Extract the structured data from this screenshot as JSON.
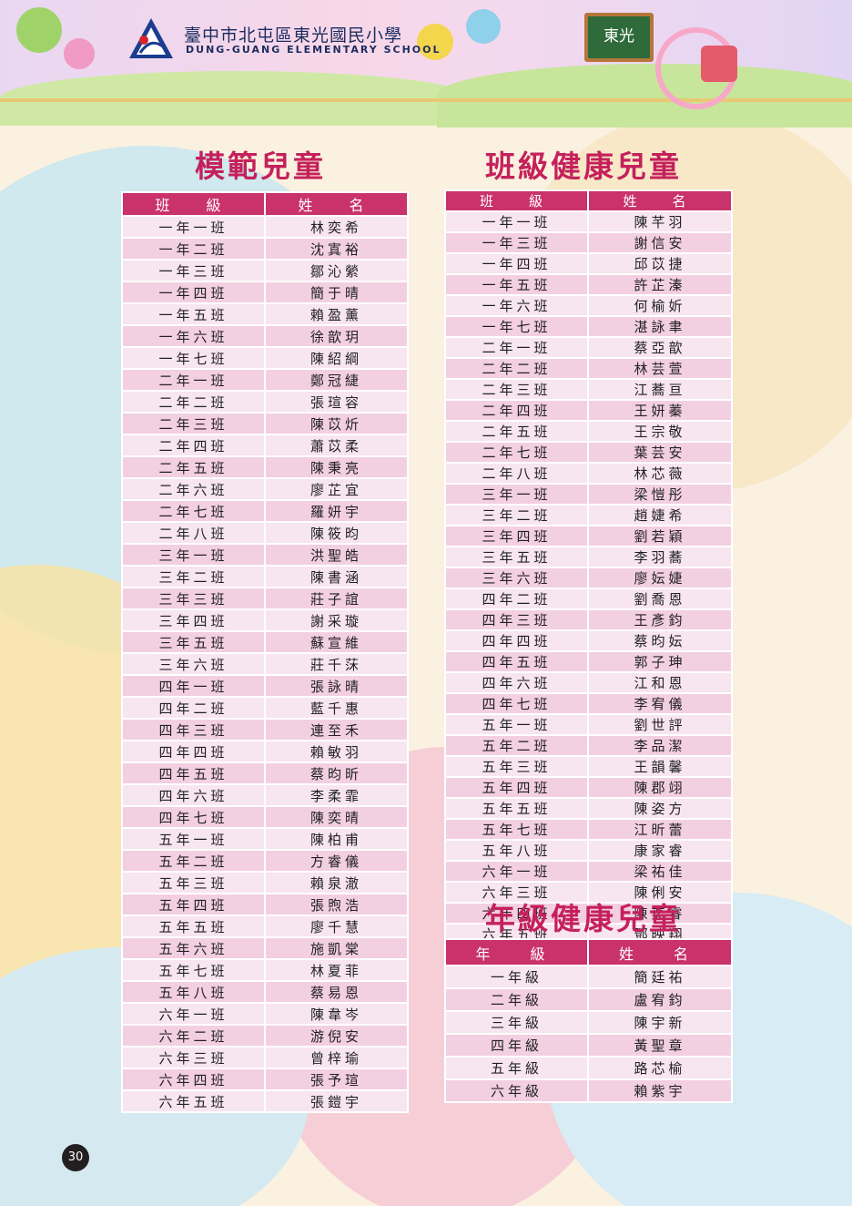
{
  "header": {
    "school_name_zh": "臺中市北屯區東光國民小學",
    "school_name_en": "DUNG-GUANG ELEMENTARY SCHOOL",
    "board_text": "東光"
  },
  "page_number": "30",
  "model_children": {
    "title": "模範兒童",
    "col_class": "班　級",
    "col_name": "姓　名",
    "rows": [
      [
        "一年一班",
        "林奕希"
      ],
      [
        "一年二班",
        "沈寘裕"
      ],
      [
        "一年三班",
        "鄒沁縈"
      ],
      [
        "一年四班",
        "簡于晴"
      ],
      [
        "一年五班",
        "賴盈薰"
      ],
      [
        "一年六班",
        "徐歆玥"
      ],
      [
        "一年七班",
        "陳紹綱"
      ],
      [
        "二年一班",
        "鄭冠緁"
      ],
      [
        "二年二班",
        "張瑄容"
      ],
      [
        "二年三班",
        "陳苡炘"
      ],
      [
        "二年四班",
        "蕭苡柔"
      ],
      [
        "二年五班",
        "陳秉亮"
      ],
      [
        "二年六班",
        "廖芷宜"
      ],
      [
        "二年七班",
        "羅妍宇"
      ],
      [
        "二年八班",
        "陳筱昀"
      ],
      [
        "三年一班",
        "洪聖皓"
      ],
      [
        "三年二班",
        "陳書涵"
      ],
      [
        "三年三班",
        "莊子誼"
      ],
      [
        "三年四班",
        "謝采璇"
      ],
      [
        "三年五班",
        "蘇宣維"
      ],
      [
        "三年六班",
        "莊千莯"
      ],
      [
        "四年一班",
        "張詠晴"
      ],
      [
        "四年二班",
        "藍千惠"
      ],
      [
        "四年三班",
        "連至禾"
      ],
      [
        "四年四班",
        "賴敏羽"
      ],
      [
        "四年五班",
        "蔡昀昕"
      ],
      [
        "四年六班",
        "李柔霏"
      ],
      [
        "四年七班",
        "陳奕晴"
      ],
      [
        "五年一班",
        "陳柏甫"
      ],
      [
        "五年二班",
        "方睿儀"
      ],
      [
        "五年三班",
        "賴泉澈"
      ],
      [
        "五年四班",
        "張煦浩"
      ],
      [
        "五年五班",
        "廖千慧"
      ],
      [
        "五年六班",
        "施凱棠"
      ],
      [
        "五年七班",
        "林夏菲"
      ],
      [
        "五年八班",
        "蔡易恩"
      ],
      [
        "六年一班",
        "陳韋岑"
      ],
      [
        "六年二班",
        "游倪安"
      ],
      [
        "六年三班",
        "曾梓瑜"
      ],
      [
        "六年四班",
        "張予瑄"
      ],
      [
        "六年五班",
        "張鎧宇"
      ]
    ]
  },
  "class_health": {
    "title": "班級健康兒童",
    "col_class": "班　級",
    "col_name": "姓　名",
    "rows": [
      [
        "一年一班",
        "陳芊羽"
      ],
      [
        "一年三班",
        "謝信安"
      ],
      [
        "一年四班",
        "邱苡捷"
      ],
      [
        "一年五班",
        "許芷溱"
      ],
      [
        "一年六班",
        "何榆妡"
      ],
      [
        "一年七班",
        "湛詠聿"
      ],
      [
        "二年一班",
        "蔡亞歆"
      ],
      [
        "二年二班",
        "林芸萱"
      ],
      [
        "二年三班",
        "江蕎亘"
      ],
      [
        "二年四班",
        "王妍蓁"
      ],
      [
        "二年五班",
        "王宗敬"
      ],
      [
        "二年七班",
        "葉芸安"
      ],
      [
        "二年八班",
        "林芯薇"
      ],
      [
        "三年一班",
        "梁愷彤"
      ],
      [
        "三年二班",
        "趙婕希"
      ],
      [
        "三年四班",
        "劉若穎"
      ],
      [
        "三年五班",
        "李羽蕎"
      ],
      [
        "三年六班",
        "廖妘婕"
      ],
      [
        "四年二班",
        "劉喬恩"
      ],
      [
        "四年三班",
        "王彥鈞"
      ],
      [
        "四年四班",
        "蔡昀妘"
      ],
      [
        "四年五班",
        "郭子珅"
      ],
      [
        "四年六班",
        "江和恩"
      ],
      [
        "四年七班",
        "李宥儀"
      ],
      [
        "五年一班",
        "劉世評"
      ],
      [
        "五年二班",
        "李品潔"
      ],
      [
        "五年三班",
        "王韻馨"
      ],
      [
        "五年四班",
        "陳郡翊"
      ],
      [
        "五年五班",
        "陳姿方"
      ],
      [
        "五年七班",
        "江昕蕾"
      ],
      [
        "五年八班",
        "康家睿"
      ],
      [
        "六年一班",
        "梁祐佳"
      ],
      [
        "六年三班",
        "陳俐安"
      ],
      [
        "六年四班",
        "陳奕睿"
      ],
      [
        "六年五班",
        "鄧映翔"
      ]
    ]
  },
  "grade_health": {
    "title": "年級健康兒童",
    "col_grade": "年　級",
    "col_name": "姓　名",
    "rows": [
      [
        "一年級",
        "簡廷祐"
      ],
      [
        "二年級",
        "盧宥鈞"
      ],
      [
        "三年級",
        "陳宇新"
      ],
      [
        "四年級",
        "黃聖章"
      ],
      [
        "五年級",
        "路芯榆"
      ],
      [
        "六年級",
        "賴紫宇"
      ]
    ]
  }
}
